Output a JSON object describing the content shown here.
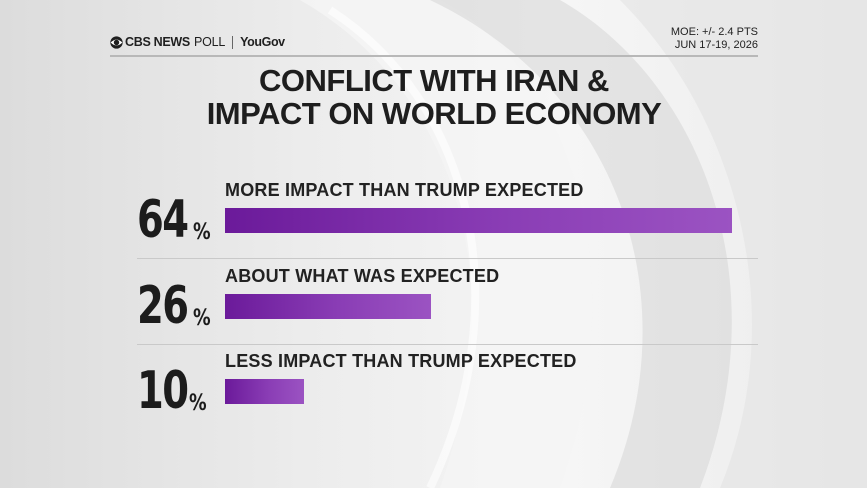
{
  "header": {
    "brand": "CBS NEWS",
    "poll": "POLL",
    "partner": "YouGov",
    "moe": "MOE: +/- 2.4 PTS",
    "dates": "JUN 17-19, 2026"
  },
  "chart_data": {
    "type": "bar",
    "title_line1": "CONFLICT WITH IRAN &",
    "title_line2": "IMPACT ON WORLD ECONOMY",
    "categories": [
      "MORE IMPACT THAN TRUMP EXPECTED",
      "ABOUT WHAT WAS EXPECTED",
      "LESS IMPACT THAN TRUMP EXPECTED"
    ],
    "values": [
      64,
      26,
      10
    ],
    "value_labels": [
      "64",
      "26",
      "10"
    ],
    "unit": "%",
    "bar_color": "#8a3db5",
    "ylim": [
      0,
      64
    ]
  }
}
